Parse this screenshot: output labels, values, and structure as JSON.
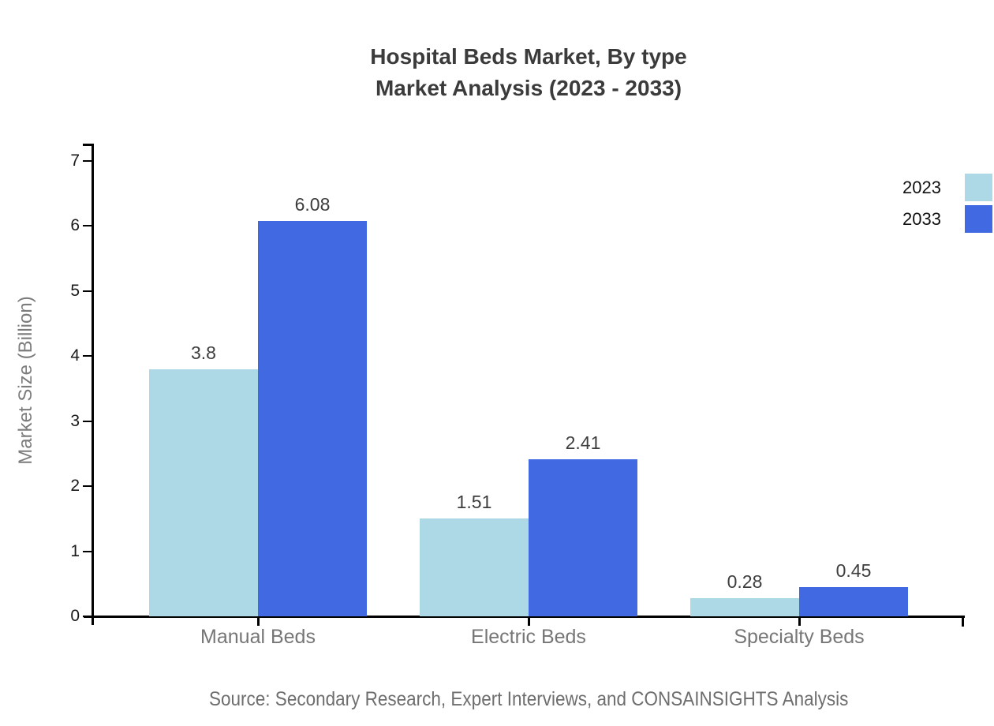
{
  "header": {
    "title_line1": "Hospital Beds Market, By type",
    "title_line2": "Market Analysis (2023 - 2033)"
  },
  "footer": {
    "source": "Source: Secondary Research, Expert Interviews, and CONSAINSIGHTS Analysis"
  },
  "chart_data": {
    "type": "bar",
    "title": "Hospital Beds Market, By type",
    "subtitle": "Market Analysis (2023 - 2033)",
    "categories": [
      "Manual Beds",
      "Electric Beds",
      "Specialty Beds"
    ],
    "series": [
      {
        "name": "2023",
        "color": "#ADD8E6",
        "values": [
          3.8,
          1.51,
          0.28
        ],
        "labels": [
          "3.8",
          "1.51",
          "0.28"
        ]
      },
      {
        "name": "2033",
        "color": "#4169E1",
        "values": [
          6.08,
          2.41,
          0.45
        ],
        "labels": [
          "6.08",
          "2.41",
          "0.45"
        ]
      }
    ],
    "xlabel": "",
    "ylabel": "Market Size (Billion)",
    "ylim": [
      0,
      7.27
    ],
    "yticks": [
      0,
      1,
      2,
      3,
      4,
      5,
      6,
      7
    ],
    "grid": false,
    "legend_position": "top-right",
    "value_labels_shown": true,
    "source": "Source: Secondary Research, Expert Interviews, and CONSAINSIGHTS Analysis"
  },
  "colors": {
    "series_2023": "#ADD8E6",
    "series_2033": "#4169E1",
    "axis": "#000000",
    "title_text": "#3b3b3b",
    "tick_text": "#1a1a1a",
    "category_text": "#767676",
    "axis_title_text": "#7c7c7c",
    "value_label_text": "#3d3d3d",
    "source_text": "#6e6e6e"
  }
}
